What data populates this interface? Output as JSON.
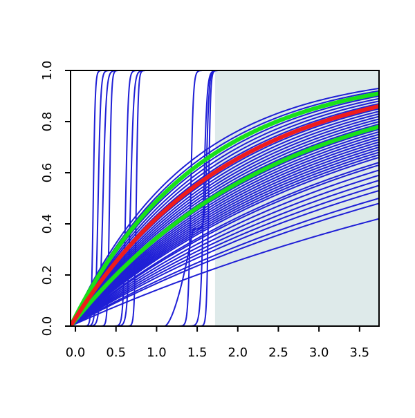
{
  "chart_data": {
    "type": "line",
    "title": "",
    "xlabel": "",
    "ylabel": "",
    "xlim": [
      -0.06,
      3.74
    ],
    "ylim": [
      0,
      1
    ],
    "x_ticks": [
      {
        "value": 0.0,
        "label": "0.0"
      },
      {
        "value": 0.5,
        "label": "0.5"
      },
      {
        "value": 1.0,
        "label": "1.0"
      },
      {
        "value": 1.5,
        "label": "1.5"
      },
      {
        "value": 2.0,
        "label": "2.0"
      },
      {
        "value": 2.5,
        "label": "2.5"
      },
      {
        "value": 3.0,
        "label": "3.0"
      },
      {
        "value": 3.5,
        "label": "3.5"
      }
    ],
    "y_ticks": [
      {
        "value": 0.0,
        "label": "0.0"
      },
      {
        "value": 0.2,
        "label": "0.2"
      },
      {
        "value": 0.4,
        "label": "0.4"
      },
      {
        "value": 0.6,
        "label": "0.6"
      },
      {
        "value": 0.8,
        "label": "0.8"
      },
      {
        "value": 1.0,
        "label": "1.0"
      }
    ],
    "grid": false,
    "legend": "none",
    "shaded_region": {
      "x_from": 1.72,
      "x_to": 3.74,
      "y_from": 0,
      "y_to": 1,
      "color": "#deeaea"
    },
    "colors": {
      "sample": "#1f1fd6",
      "median": "#ee1c1c",
      "band": "#19e019",
      "axis": "#000000"
    },
    "sample_curves": {
      "smooth_end_values_at_x_3_74": [
        0.42,
        0.48,
        0.5,
        0.53,
        0.55,
        0.57,
        0.59,
        0.61,
        0.63,
        0.64,
        0.66,
        0.67,
        0.68,
        0.69,
        0.7,
        0.71,
        0.72,
        0.73,
        0.74,
        0.75,
        0.76,
        0.77,
        0.78,
        0.79,
        0.8,
        0.81,
        0.82,
        0.83,
        0.84,
        0.85,
        0.86,
        0.87,
        0.88,
        0.89,
        0.9,
        0.91,
        0.92,
        0.93
      ],
      "steep_step_midpoints_x": [
        0.22,
        0.28,
        0.34,
        0.42,
        0.62,
        0.68,
        0.75,
        1.42,
        1.58,
        1.64
      ],
      "step_with_ramp": {
        "start_x": 1.1,
        "ramp_to_x": 1.45,
        "ramp_to_y": 0.38,
        "step_x": 1.62
      }
    },
    "series": [
      {
        "role": "median",
        "start": [
          -0.06,
          0.0
        ],
        "end": [
          3.74,
          0.86
        ]
      },
      {
        "role": "band_upper",
        "start": [
          -0.06,
          0.0
        ],
        "end": [
          3.74,
          0.91
        ]
      },
      {
        "role": "band_lower",
        "start": [
          -0.06,
          0.0
        ],
        "end": [
          3.74,
          0.78
        ]
      }
    ]
  }
}
